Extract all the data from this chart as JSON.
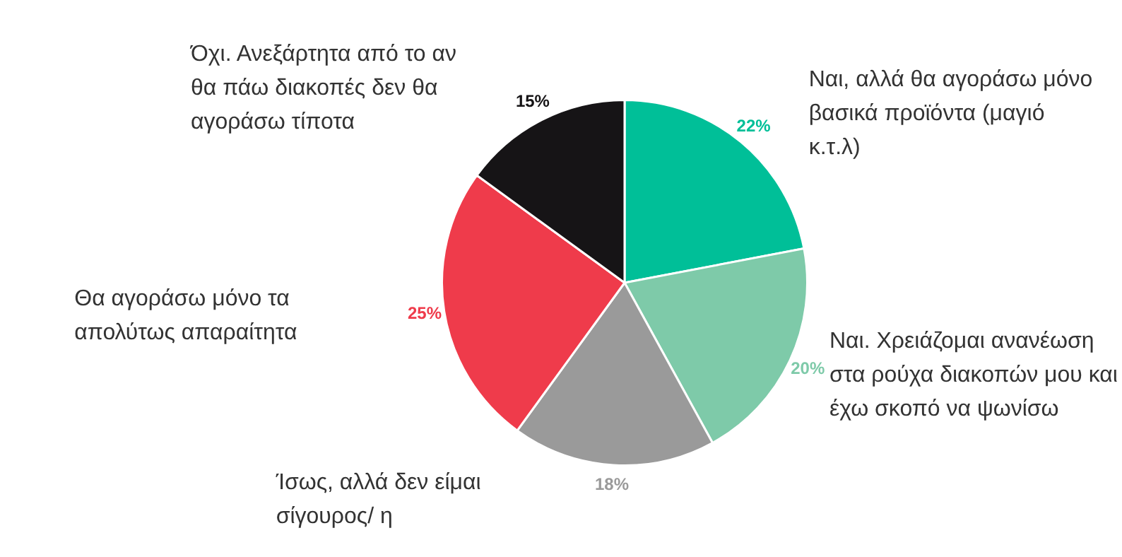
{
  "chart_data": {
    "type": "pie",
    "categories": [
      "Ναι, αλλά θα αγοράσω μόνο βασικά προϊόντα (μαγιό κ.τ.λ)",
      "Ναι. Χρειάζομαι ανανέωση στα ρούχα διακοπών μου και έχω σκοπό να ψωνίσω",
      "Ίσως, αλλά δεν είμαι σίγουρος/ η",
      "Θα αγοράσω μόνο τα απολύτως απαραίτητα",
      "Όχι. Ανεξάρτητα από το αν θα πάω διακοπές δεν θα αγοράσω τίποτα"
    ],
    "values": [
      22,
      20,
      18,
      25,
      15
    ],
    "colors": [
      "#00bf98",
      "#7ecaa9",
      "#9a9a9a",
      "#ef3b4b",
      "#161416"
    ],
    "value_labels": [
      "22%",
      "20%",
      "18%",
      "25%",
      "15%"
    ],
    "legend": false
  }
}
